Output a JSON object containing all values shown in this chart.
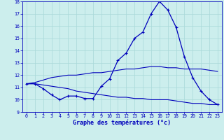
{
  "xlabel": "Graphe des températures (°c)",
  "bg_color": "#cceeed",
  "line_color": "#0000bb",
  "x": [
    0,
    1,
    2,
    3,
    4,
    5,
    6,
    7,
    8,
    9,
    10,
    11,
    12,
    13,
    14,
    15,
    16,
    17,
    18,
    19,
    20,
    21,
    22,
    23
  ],
  "y_main": [
    11.3,
    11.3,
    10.9,
    10.4,
    10.0,
    10.3,
    10.3,
    10.1,
    10.1,
    11.1,
    11.7,
    13.2,
    13.8,
    15.0,
    15.5,
    17.0,
    18.0,
    17.3,
    15.9,
    13.5,
    11.8,
    10.7,
    10.0,
    9.6
  ],
  "y_upper": [
    11.3,
    11.4,
    11.6,
    11.8,
    11.9,
    12.0,
    12.0,
    12.1,
    12.2,
    12.2,
    12.3,
    12.4,
    12.5,
    12.5,
    12.6,
    12.7,
    12.7,
    12.6,
    12.6,
    12.5,
    12.5,
    12.5,
    12.4,
    12.3
  ],
  "y_lower": [
    11.3,
    11.3,
    11.2,
    11.1,
    11.0,
    10.9,
    10.7,
    10.6,
    10.5,
    10.4,
    10.3,
    10.2,
    10.2,
    10.1,
    10.1,
    10.0,
    10.0,
    10.0,
    9.9,
    9.8,
    9.7,
    9.7,
    9.6,
    9.6
  ],
  "ylim": [
    9,
    18
  ],
  "xlim_min": -0.5,
  "xlim_max": 23.5,
  "yticks": [
    9,
    10,
    11,
    12,
    13,
    14,
    15,
    16,
    17,
    18
  ],
  "xticks": [
    0,
    1,
    2,
    3,
    4,
    5,
    6,
    7,
    8,
    9,
    10,
    11,
    12,
    13,
    14,
    15,
    16,
    17,
    18,
    19,
    20,
    21,
    22,
    23
  ]
}
